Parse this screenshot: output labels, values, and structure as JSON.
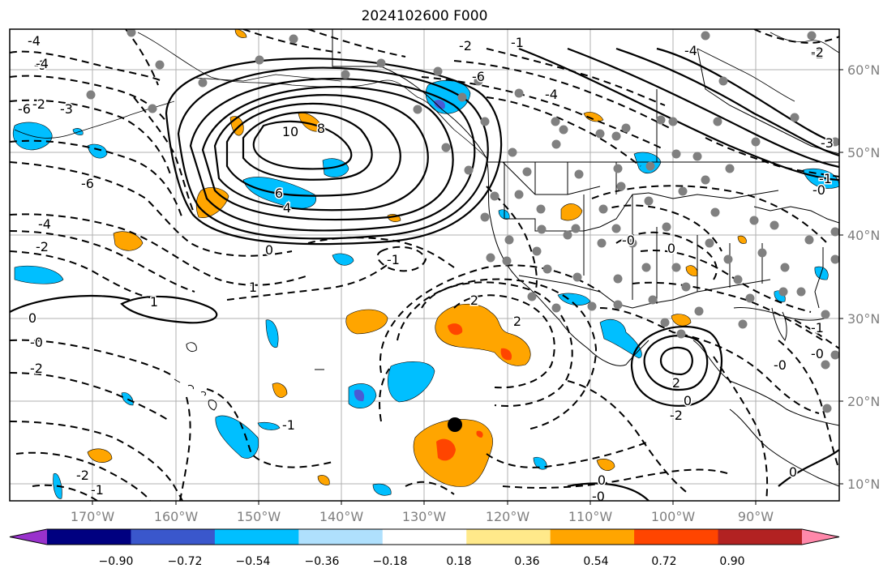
{
  "title": "2024102600 F000",
  "map": {
    "lon_labels": [
      "170°W",
      "160°W",
      "150°W",
      "140°W",
      "130°W",
      "120°W",
      "110°W",
      "100°W",
      "90°W"
    ],
    "lat_labels": [
      "60°N",
      "50°N",
      "40°N",
      "30°N",
      "20°N",
      "10°N"
    ],
    "grid": true,
    "contour_labels": [
      "-4",
      "-3",
      "-3",
      "-2",
      "-6",
      "-4",
      "-2",
      "0",
      "-0",
      "-2",
      "-2",
      "-1",
      "10",
      "8",
      "6",
      "4",
      "0",
      "1",
      "1",
      "-1",
      "-0",
      "0",
      "2",
      "2",
      "2",
      "0",
      "-2",
      "-1",
      "0",
      "-0",
      "0",
      "-1",
      "-0",
      "-0",
      "-1",
      "-2",
      "-4",
      "-6",
      "-4",
      "-2",
      "-3",
      "-1",
      "-0",
      "-4",
      "-6",
      "-2"
    ]
  },
  "colorbar": {
    "tick_labels": [
      "−0.90",
      "−0.72",
      "−0.54",
      "−0.36",
      "−0.18",
      "0.18",
      "0.36",
      "0.54",
      "0.72",
      "0.90"
    ],
    "colors": [
      "#9932cc",
      "#000080",
      "#3a57cc",
      "#00bfff",
      "#afe0fd",
      "#ffffff",
      "#ffe98a",
      "#ffa500",
      "#ff4500",
      "#b22222",
      "#ff88aa"
    ]
  }
}
